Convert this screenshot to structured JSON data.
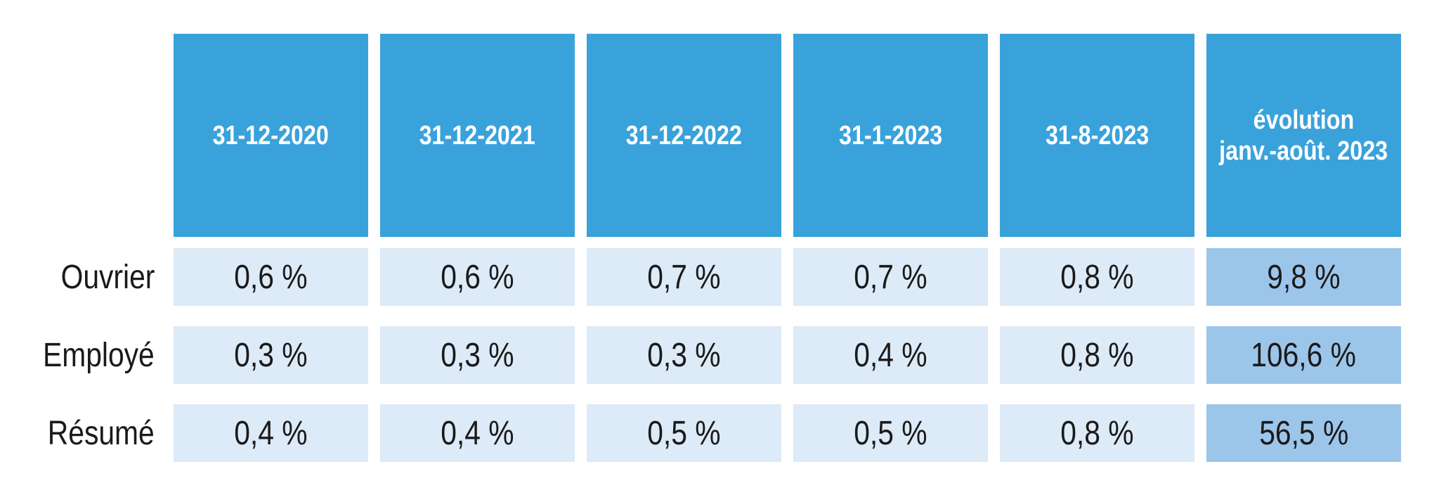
{
  "colors": {
    "header_bg": "#3AA2DB",
    "cell_bg": "#DDEAF7",
    "highlight_cell_bg": "#9CC5EA",
    "header_text": "#FFFFFF",
    "cell_text": "#1A1A1A",
    "page_bg": "#FFFFFF"
  },
  "table": {
    "columns": [
      {
        "lines": [
          "31-12-2020"
        ]
      },
      {
        "lines": [
          "31-12-2021"
        ]
      },
      {
        "lines": [
          "31-12-2022"
        ]
      },
      {
        "lines": [
          "31-1-2023"
        ]
      },
      {
        "lines": [
          "31-8-2023"
        ]
      },
      {
        "lines": [
          "évolution",
          "janv.-août. 2023"
        ]
      }
    ],
    "rows": [
      {
        "label": "Ouvrier",
        "values": [
          "0,6 %",
          "0,6 %",
          "0,7 %",
          "0,7 %",
          "0,8 %",
          "9,8 %"
        ]
      },
      {
        "label": "Employé",
        "values": [
          "0,3 %",
          "0,3 %",
          "0,3 %",
          "0,4 %",
          "0,8 %",
          "106,6 %"
        ]
      },
      {
        "label": "Résumé",
        "values": [
          "0,4 %",
          "0,4 %",
          "0,5 %",
          "0,5 %",
          "0,8 %",
          "56,5 %"
        ]
      }
    ]
  },
  "chart_data": {
    "type": "table",
    "categories": [
      "31-12-2020",
      "31-12-2021",
      "31-12-2022",
      "31-1-2023",
      "31-8-2023",
      "évolution janv.-août. 2023"
    ],
    "series": [
      {
        "name": "Ouvrier",
        "values": [
          0.6,
          0.6,
          0.7,
          0.7,
          0.8,
          9.8
        ]
      },
      {
        "name": "Employé",
        "values": [
          0.3,
          0.3,
          0.3,
          0.4,
          0.8,
          106.6
        ]
      },
      {
        "name": "Résumé",
        "values": [
          0.4,
          0.4,
          0.5,
          0.5,
          0.8,
          56.5
        ]
      }
    ],
    "unit": "%",
    "title": "",
    "legend_position": "none",
    "notes": "Last column (évolution janv.-août. 2023) is highlighted with a darker blue background"
  }
}
